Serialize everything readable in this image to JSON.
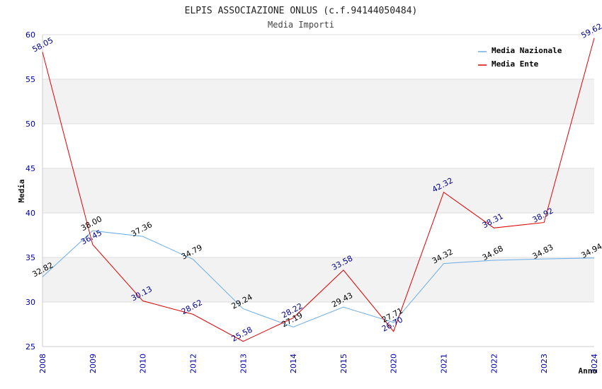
{
  "chart_data": {
    "type": "line",
    "title": "ELPIS ASSOCIAZIONE ONLUS (c.f.94144050484)",
    "subtitle": "Media Importi",
    "xlabel": "Anno",
    "ylabel": "Media",
    "ylim": [
      25,
      60
    ],
    "yticks": [
      25,
      30,
      35,
      40,
      45,
      50,
      55,
      60
    ],
    "categories": [
      "2008",
      "2009",
      "2010",
      "2012",
      "2013",
      "2014",
      "2015",
      "2020",
      "2021",
      "2022",
      "2023",
      "2024"
    ],
    "series": [
      {
        "name": "Media Nazionale",
        "color": "#6aaee8",
        "label_color": "#000000",
        "values": [
          32.82,
          38.0,
          37.36,
          34.79,
          29.24,
          27.19,
          29.43,
          27.71,
          34.32,
          34.68,
          34.83,
          34.94
        ],
        "labels": [
          "32.82",
          "38.00",
          "37.36",
          "34.79",
          "29.24",
          "27.19",
          "29.43",
          "27.71",
          "34.32",
          "34.68",
          "34.83",
          "34.94"
        ]
      },
      {
        "name": "Media Ente",
        "color": "#e00000",
        "label_color": "#00008b",
        "values": [
          58.05,
          36.45,
          30.13,
          28.62,
          25.58,
          28.22,
          33.58,
          26.7,
          42.32,
          38.31,
          38.92,
          59.62
        ],
        "labels": [
          "58.05",
          "36.45",
          "30.13",
          "28.62",
          "25.58",
          "28.22",
          "33.58",
          "26.70",
          "42.32",
          "38.31",
          "38.92",
          "59.62"
        ]
      }
    ],
    "legend_position": "top-right",
    "grid": true,
    "colors": {
      "band": "#f2f2f2",
      "gridline": "#dddddd",
      "tick_text": "#0000aa"
    }
  }
}
